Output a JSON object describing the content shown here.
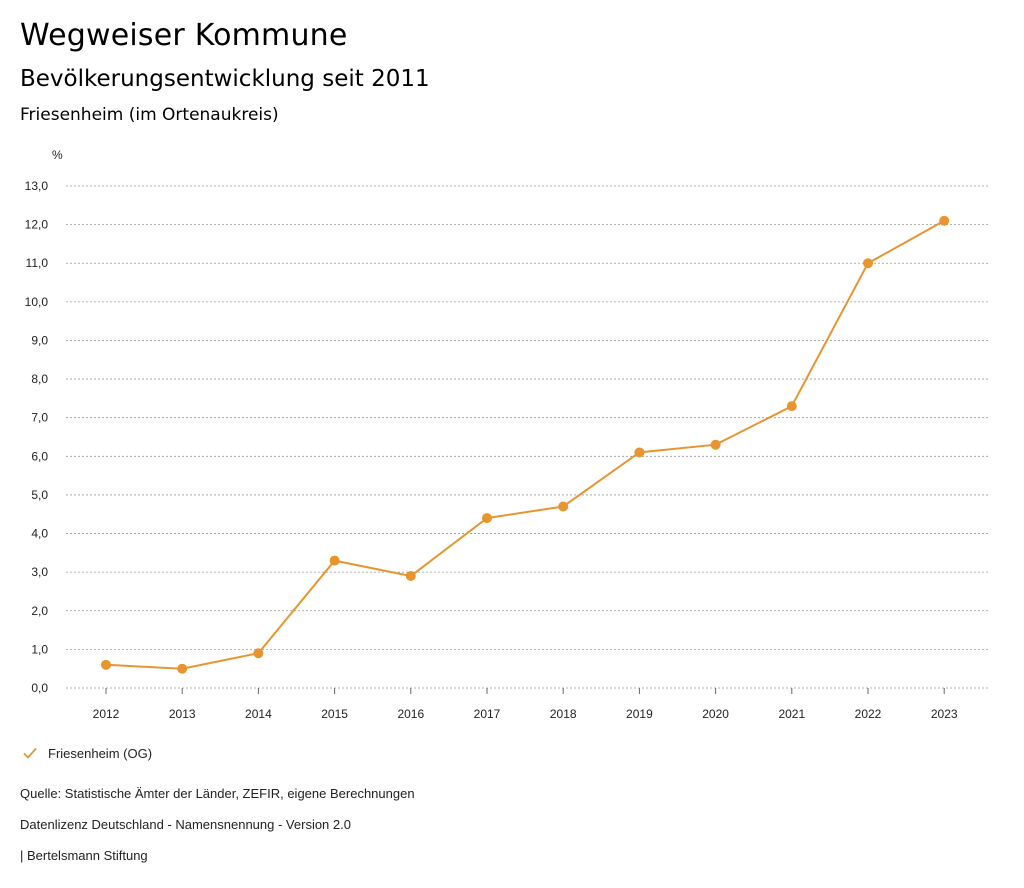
{
  "header": {
    "title": "Wegweiser Kommune",
    "subtitle": "Bevölkerungsentwicklung seit 2011",
    "region": "Friesenheim (im Ortenaukreis)"
  },
  "legend": {
    "label": "Friesenheim (OG)"
  },
  "footer": {
    "source": "Quelle: Statistische Ämter der Länder, ZEFIR, eigene Berechnungen",
    "license": "Datenlizenz Deutschland - Namensnennung - Version 2.0",
    "publisher": "| Bertelsmann Stiftung"
  },
  "colors": {
    "series": "#e8952f",
    "grid": "#999999",
    "axis_text": "#222222"
  },
  "chart_data": {
    "type": "line",
    "title": "Bevölkerungsentwicklung seit 2011",
    "xlabel": "",
    "ylabel": "%",
    "ylim": [
      0,
      13
    ],
    "yticks": [
      "0,0",
      "1,0",
      "2,0",
      "3,0",
      "4,0",
      "5,0",
      "6,0",
      "7,0",
      "8,0",
      "9,0",
      "10,0",
      "11,0",
      "12,0",
      "13,0"
    ],
    "categories": [
      "2012",
      "2013",
      "2014",
      "2015",
      "2016",
      "2017",
      "2018",
      "2019",
      "2020",
      "2021",
      "2022",
      "2023"
    ],
    "series": [
      {
        "name": "Friesenheim (OG)",
        "values": [
          0.6,
          0.5,
          0.9,
          3.3,
          2.9,
          4.4,
          4.7,
          6.1,
          6.3,
          7.3,
          11.0,
          12.1
        ]
      }
    ],
    "grid": true,
    "legend_position": "bottom-left"
  }
}
